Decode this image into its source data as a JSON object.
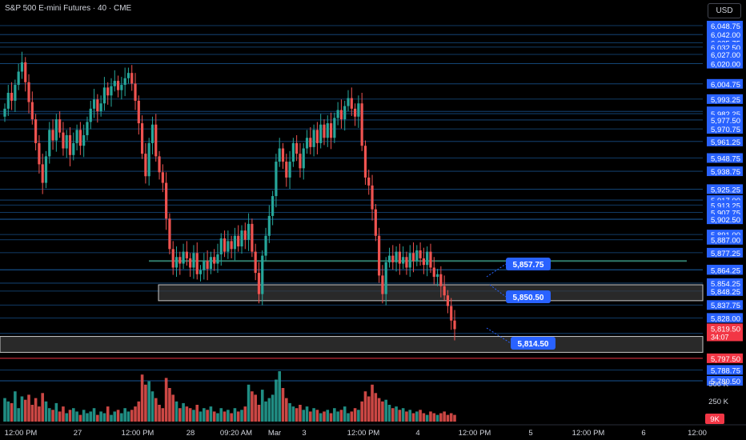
{
  "header": {
    "title": "S&P 500 E-mini Futures",
    "interval": "40",
    "exchange": "CME",
    "separator": " · "
  },
  "currency_button": "USD",
  "colors": {
    "background": "#000000",
    "up": "#26a69a",
    "down": "#ef5350",
    "level_line": "#1f6fbf",
    "label_blue": "#2962ff",
    "zone_fill": "#3a3a3a",
    "support_line": "#2f7a6a",
    "red_level": "#f23645",
    "text": "#d1d4dc"
  },
  "chart_data": {
    "type": "candlestick",
    "symbol": "S&P 500 E-mini Futures",
    "interval": "40",
    "exchange": "CME",
    "currency": "USD",
    "x_ticks": [
      "12:00 PM",
      "27",
      "12:00 PM",
      "28",
      "09:20 AM",
      "Mar",
      "3",
      "12:00 PM",
      "4",
      "12:00 PM",
      "5",
      "12:00 PM",
      "6",
      "12:00"
    ],
    "level_lines": [
      6048.75,
      6042.0,
      6035.75,
      6032.5,
      6027.0,
      6020.0,
      6004.75,
      5993.25,
      5984.0,
      5982.25,
      5977.5,
      5970.75,
      5961.25,
      5948.75,
      5938.75,
      5925.25,
      5917.0,
      5913.25,
      5907.75,
      5902.5,
      5902.5,
      5891.0,
      5887.0,
      5877.25,
      5864.5,
      5864.25,
      5854.25,
      5848.25,
      5837.75,
      5828.0,
      5816.25,
      5788.75,
      5780.5,
      5780.5
    ],
    "red_level": 5797.5,
    "current_price": 5819.5,
    "current_price_sub": "34:07",
    "support_line": 5871.0,
    "zones": [
      {
        "label": "zone-upper",
        "top": 5853.0,
        "bottom": 5841.0
      },
      {
        "label": "zone-lower",
        "top": 5814.0,
        "bottom": 5802.0
      }
    ],
    "callouts": [
      "5,857.75",
      "5,850.50",
      "5,814.50"
    ],
    "volume_axis_labels": [
      "500 K",
      "250 K"
    ],
    "volume_last_label": "9K",
    "series": [
      {
        "name": "price",
        "values": [
          5986,
          5998,
          5992,
          6004,
          6014,
          6021,
          6006,
          5991,
          5978,
          5960,
          5944,
          5930,
          5950,
          5970,
          5962,
          5978,
          5968,
          5956,
          5966,
          5951,
          5960,
          5970,
          5958,
          5966,
          5976,
          5986,
          5993,
          5984,
          5990,
          6002,
          5996,
          6003,
          6007,
          6000,
          6004,
          6009,
          6013,
          6005,
          5992,
          5975,
          5952,
          5935,
          5960,
          5974,
          5950,
          5938,
          5930,
          5903,
          5880,
          5866,
          5874,
          5869,
          5878,
          5873,
          5866,
          5877,
          5861,
          5864,
          5871,
          5865,
          5874,
          5869,
          5876,
          5888,
          5878,
          5886,
          5880,
          5890,
          5882,
          5894,
          5887,
          5899,
          5878,
          5862,
          5846,
          5875,
          5890,
          5905,
          5920,
          5946,
          5956,
          5946,
          5934,
          5946,
          5960,
          5952,
          5941,
          5956,
          5964,
          5957,
          5970,
          5960,
          5974,
          5964,
          5975,
          5964,
          5979,
          5985,
          5978,
          5988,
          5994,
          5986,
          5980,
          5990,
          5958,
          5934,
          5928,
          5910,
          5890,
          5860,
          5846,
          5870,
          5875,
          5870,
          5878,
          5869,
          5874,
          5866,
          5877,
          5871,
          5879,
          5873,
          5868,
          5878,
          5866,
          5859,
          5861,
          5852,
          5845,
          5837,
          5826,
          5819.5
        ]
      }
    ],
    "volumes": [
      70,
      60,
      55,
      90,
      40,
      75,
      65,
      80,
      50,
      70,
      45,
      85,
      60,
      40,
      35,
      55,
      30,
      45,
      25,
      35,
      40,
      30,
      20,
      35,
      25,
      30,
      40,
      20,
      30,
      25,
      45,
      20,
      30,
      35,
      25,
      40,
      30,
      35,
      45,
      60,
      140,
      110,
      120,
      90,
      70,
      50,
      40,
      130,
      100,
      80,
      60,
      40,
      55,
      45,
      40,
      35,
      50,
      30,
      40,
      35,
      45,
      30,
      25,
      40,
      30,
      35,
      25,
      40,
      30,
      35,
      45,
      110,
      90,
      80,
      50,
      95,
      60,
      70,
      80,
      125,
      150,
      100,
      70,
      55,
      45,
      40,
      50,
      35,
      45,
      30,
      40,
      35,
      25,
      30,
      35,
      25,
      40,
      30,
      35,
      45,
      25,
      30,
      40,
      35,
      60,
      90,
      75,
      110,
      85,
      70,
      60,
      65,
      50,
      40,
      45,
      35,
      40,
      30,
      35,
      25,
      30,
      35,
      25,
      20,
      30,
      25,
      20,
      25,
      30,
      20,
      25,
      20
    ],
    "log_scale": false,
    "grid": false
  }
}
